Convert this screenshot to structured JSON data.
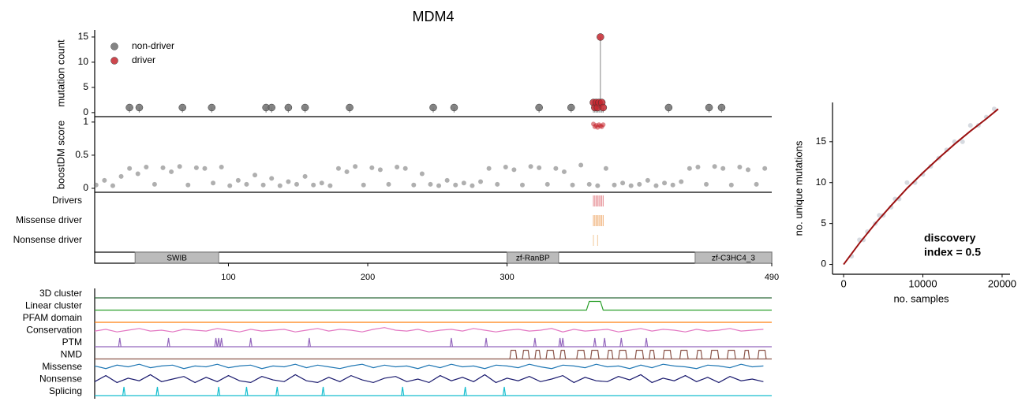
{
  "chart_data": [
    {
      "type": "lollipop",
      "title": "MDM4",
      "y_label": "mutation count",
      "xlim": [
        4,
        490
      ],
      "ylim": [
        -0.8,
        16.4
      ],
      "yticks": [
        0,
        5,
        10,
        15
      ],
      "legend": "upper left",
      "series": [
        {
          "name": "non-driver",
          "color": "#6e6e6e",
          "x": [
            29,
            36,
            67,
            88,
            127,
            131,
            143,
            155,
            187,
            247,
            262,
            323,
            346,
            416,
            445,
            454
          ],
          "values": [
            1,
            1,
            1,
            1,
            1,
            1,
            1,
            1,
            1,
            1,
            1,
            1,
            1,
            1,
            1,
            1
          ]
        },
        {
          "name": "driver",
          "color": "#c4262e",
          "x": [
            362,
            363,
            364,
            365,
            366,
            367,
            368,
            369
          ],
          "values": [
            2,
            1,
            2,
            1,
            2,
            15,
            2,
            1
          ]
        }
      ]
    },
    {
      "type": "scatter",
      "y_label": "boostDM score",
      "xlim": [
        4,
        490
      ],
      "ylim": [
        -0.06,
        1.07
      ],
      "yticks": [
        0,
        0.5,
        1
      ],
      "series": [
        {
          "color": "#6e6e6e",
          "x": [
            5,
            11,
            17,
            23,
            29,
            35,
            41,
            47,
            53,
            59,
            65,
            71,
            77,
            83,
            89,
            95,
            101,
            107,
            113,
            119,
            125,
            131,
            137,
            143,
            149,
            155,
            161,
            167,
            173,
            179,
            185,
            191,
            197,
            203,
            209,
            215,
            221,
            227,
            233,
            239,
            245,
            251,
            257,
            263,
            269,
            275,
            281,
            287,
            293,
            299,
            305,
            311,
            317,
            323,
            329,
            335,
            341,
            347,
            353,
            359,
            365,
            371,
            377,
            383,
            389,
            395,
            401,
            407,
            413,
            419,
            425,
            431,
            437,
            443,
            449,
            455,
            461,
            467,
            473,
            479,
            485
          ],
          "values": [
            0.05,
            0.12,
            0.04,
            0.18,
            0.3,
            0.22,
            0.32,
            0.06,
            0.31,
            0.25,
            0.33,
            0.05,
            0.31,
            0.3,
            0.08,
            0.32,
            0.04,
            0.12,
            0.06,
            0.2,
            0.05,
            0.15,
            0.04,
            0.1,
            0.06,
            0.18,
            0.05,
            0.08,
            0.04,
            0.3,
            0.25,
            0.33,
            0.05,
            0.31,
            0.28,
            0.06,
            0.32,
            0.3,
            0.05,
            0.22,
            0.06,
            0.04,
            0.12,
            0.05,
            0.08,
            0.04,
            0.1,
            0.3,
            0.06,
            0.32,
            0.28,
            0.05,
            0.33,
            0.31,
            0.06,
            0.3,
            0.25,
            0.05,
            0.35,
            0.06,
            0.04,
            0.3,
            0.05,
            0.08,
            0.04,
            0.06,
            0.12,
            0.04,
            0.08,
            0.05,
            0.1,
            0.3,
            0.32,
            0.06,
            0.33,
            0.3,
            0.05,
            0.32,
            0.28,
            0.06,
            0.3
          ]
        },
        {
          "color": "#c4262e",
          "x": [
            362,
            363,
            364,
            365,
            366,
            367,
            368,
            369
          ],
          "values": [
            0.97,
            0.93,
            0.95,
            0.92,
            0.96,
            0.94,
            0.93,
            0.96
          ]
        }
      ]
    },
    {
      "type": "rug",
      "xlim": [
        4,
        490
      ],
      "rows": [
        {
          "label": "Drivers",
          "color": "#e58a90",
          "x": [
            362,
            363,
            364,
            365,
            366,
            367,
            368,
            369
          ]
        },
        {
          "label": "Missense driver",
          "color": "#f0b27a",
          "x": [
            362,
            363,
            364,
            365,
            366,
            367,
            368,
            369
          ]
        },
        {
          "label": "Nonsense driver",
          "color": "#f2c99a",
          "x": [
            362,
            365
          ]
        }
      ]
    },
    {
      "type": "domains",
      "xlim": [
        4,
        490
      ],
      "xticks": [
        100,
        200,
        300,
        490
      ],
      "domains": [
        {
          "label": "SWIB",
          "start": 33,
          "end": 93
        },
        {
          "label": "zf-RanBP",
          "start": 300,
          "end": 337
        },
        {
          "label": "zf-C3HC4_3",
          "start": 435,
          "end": 490
        }
      ]
    },
    {
      "type": "tracks",
      "xlim": [
        4,
        490
      ],
      "tracks": [
        {
          "name": "3D cluster",
          "color": "#2d6a3a",
          "style": "line",
          "x": [
            4,
            490
          ],
          "values": [
            0,
            0
          ]
        },
        {
          "name": "Linear cluster",
          "color": "#2ca02c",
          "style": "line",
          "x": [
            4,
            357,
            359,
            367,
            369,
            490
          ],
          "values": [
            0,
            0,
            1,
            1,
            0,
            0
          ]
        },
        {
          "name": "PFAM domain",
          "color": "#ff7f0e",
          "style": "line",
          "x": [
            4,
            490
          ],
          "values": [
            0,
            0
          ]
        },
        {
          "name": "Conservation",
          "color": "#e377c2",
          "style": "line",
          "x": [
            4,
            12,
            20,
            28,
            36,
            44,
            52,
            60,
            68,
            76,
            84,
            92,
            100,
            108,
            116,
            124,
            132,
            140,
            148,
            156,
            164,
            172,
            180,
            188,
            196,
            204,
            212,
            220,
            228,
            236,
            244,
            252,
            260,
            268,
            276,
            284,
            292,
            300,
            308,
            316,
            324,
            332,
            340,
            348,
            356,
            364,
            372,
            380,
            388,
            396,
            404,
            412,
            420,
            428,
            436,
            444,
            452,
            460,
            468,
            476,
            484
          ],
          "values": [
            0.4,
            0.6,
            0.3,
            0.5,
            0.7,
            0.4,
            0.5,
            0.3,
            0.6,
            0.5,
            0.4,
            0.7,
            0.5,
            0.3,
            0.6,
            0.4,
            0.5,
            0.6,
            0.3,
            0.5,
            0.7,
            0.4,
            0.6,
            0.5,
            0.3,
            0.6,
            0.8,
            0.5,
            0.4,
            0.6,
            0.3,
            0.5,
            0.6,
            0.4,
            0.7,
            0.5,
            0.3,
            0.5,
            0.6,
            0.4,
            0.5,
            0.7,
            0.3,
            0.6,
            0.4,
            0.5,
            0.6,
            0.3,
            0.5,
            0.7,
            0.4,
            0.6,
            0.5,
            0.3,
            0.6,
            0.4,
            0.5,
            0.7,
            0.4,
            0.5,
            0.6
          ]
        },
        {
          "name": "PTM",
          "color": "#9467bd",
          "style": "spikes",
          "x": [
            22,
            57,
            91,
            93,
            95,
            116,
            158,
            260,
            285,
            320,
            338,
            340,
            363,
            370,
            382,
            400
          ],
          "values": [
            1,
            1,
            1,
            1,
            1,
            1,
            1,
            1,
            1,
            1,
            1,
            1,
            1,
            1,
            1,
            1
          ]
        },
        {
          "name": "NMD",
          "color": "#8c564b",
          "style": "blocks",
          "x": [
            302,
            311,
            320,
            328,
            338,
            350,
            360,
            372,
            380,
            392,
            402,
            412,
            424,
            436,
            446,
            458,
            470,
            480
          ],
          "x_end": [
            307,
            316,
            324,
            334,
            342,
            356,
            366,
            376,
            386,
            398,
            406,
            418,
            430,
            440,
            452,
            464,
            474,
            486
          ],
          "values": [
            1,
            1,
            1,
            1,
            1,
            1,
            1,
            1,
            1,
            1,
            1,
            1,
            1,
            1,
            1,
            1,
            1,
            1
          ]
        },
        {
          "name": "Missense",
          "color": "#1f77b4",
          "style": "line",
          "x": [
            4,
            12,
            20,
            28,
            36,
            44,
            52,
            60,
            68,
            76,
            84,
            92,
            100,
            108,
            116,
            124,
            132,
            140,
            148,
            156,
            164,
            172,
            180,
            188,
            196,
            204,
            212,
            220,
            228,
            236,
            244,
            252,
            260,
            268,
            276,
            284,
            292,
            300,
            308,
            316,
            324,
            332,
            340,
            348,
            356,
            364,
            372,
            380,
            388,
            396,
            404,
            412,
            420,
            428,
            436,
            444,
            452,
            460,
            468,
            476,
            484
          ],
          "values": [
            0.6,
            0.3,
            0.7,
            0.5,
            0.8,
            0.4,
            0.6,
            0.7,
            0.3,
            0.6,
            0.5,
            0.8,
            0.4,
            0.6,
            0.7,
            0.3,
            0.6,
            0.5,
            0.8,
            0.4,
            0.7,
            0.5,
            0.3,
            0.6,
            0.8,
            0.4,
            0.7,
            0.5,
            0.6,
            0.3,
            0.7,
            0.4,
            0.8,
            0.5,
            0.6,
            0.3,
            0.7,
            0.6,
            0.4,
            0.8,
            0.5,
            0.3,
            0.7,
            0.6,
            0.4,
            0.8,
            0.5,
            0.6,
            0.3,
            0.7,
            0.4,
            0.8,
            0.6,
            0.5,
            0.3,
            0.7,
            0.6,
            0.4,
            0.8,
            0.5,
            0.6
          ]
        },
        {
          "name": "Nonsense",
          "color": "#1a1a6e",
          "style": "line",
          "x": [
            4,
            12,
            20,
            28,
            36,
            44,
            52,
            60,
            68,
            76,
            84,
            92,
            100,
            108,
            116,
            124,
            132,
            140,
            148,
            156,
            164,
            172,
            180,
            188,
            196,
            204,
            212,
            220,
            228,
            236,
            244,
            252,
            260,
            268,
            276,
            284,
            292,
            300,
            308,
            316,
            324,
            332,
            340,
            348,
            356,
            364,
            372,
            380,
            388,
            396,
            404,
            412,
            420,
            428,
            436,
            444,
            452,
            460,
            468,
            476,
            484
          ],
          "values": [
            0.2,
            0.9,
            0.1,
            0.6,
            0.3,
            1,
            0.2,
            0.5,
            0.8,
            0.1,
            0.7,
            0.2,
            0.9,
            0.3,
            0.1,
            0.8,
            0.4,
            0.2,
            1,
            0.3,
            0.1,
            0.7,
            0.2,
            0.9,
            0.4,
            0.1,
            0.6,
            0.8,
            0.2,
            0.5,
            0.1,
            0.9,
            0.3,
            0.7,
            0.2,
            1,
            0.1,
            0.6,
            0.3,
            0.8,
            0.2,
            0.5,
            0.9,
            0.1,
            0.7,
            0.3,
            0.2,
            0.8,
            0.4,
            1,
            0.1,
            0.6,
            0.3,
            0.9,
            0.2,
            0.7,
            0.1,
            0.8,
            0.3,
            0.5,
            0.2
          ]
        },
        {
          "name": "Splicing",
          "color": "#17becf",
          "style": "spikes",
          "x": [
            25,
            49,
            93,
            113,
            135,
            168,
            225,
            270,
            298
          ],
          "values": [
            1,
            1,
            1,
            1,
            1,
            1,
            1,
            1,
            1
          ]
        }
      ]
    },
    {
      "type": "scatter",
      "x_label": "no. samples",
      "y_label": "no. unique mutations",
      "xlim": [
        -1400,
        21000
      ],
      "ylim": [
        -1.2,
        19.8
      ],
      "xticks": [
        0,
        10000,
        20000
      ],
      "yticks": [
        0,
        5,
        10,
        15
      ],
      "annotation": [
        "discovery",
        "index = 0.5"
      ],
      "series": [
        {
          "color": "#b4bcc6",
          "style": "points",
          "x": [
            1000,
            2000,
            2500,
            3000,
            4000,
            4500,
            5000,
            6000,
            6500,
            7000,
            8000,
            9000,
            10000,
            11000,
            12000,
            13000,
            14000,
            15000,
            16000,
            17000,
            18000,
            19000
          ],
          "values": [
            1,
            3,
            3,
            4,
            5,
            6,
            6,
            7,
            8,
            8,
            10,
            10,
            11,
            12,
            13,
            14,
            15,
            15,
            17,
            17,
            18,
            19
          ]
        },
        {
          "color": "#9b1111",
          "style": "line",
          "x": [
            0,
            2000,
            4000,
            6000,
            8000,
            10000,
            12000,
            14000,
            16000,
            18000,
            19500
          ],
          "values": [
            0,
            2.6,
            5,
            7.2,
            9.3,
            11.2,
            13,
            14.7,
            16.3,
            17.8,
            19
          ]
        }
      ]
    }
  ]
}
